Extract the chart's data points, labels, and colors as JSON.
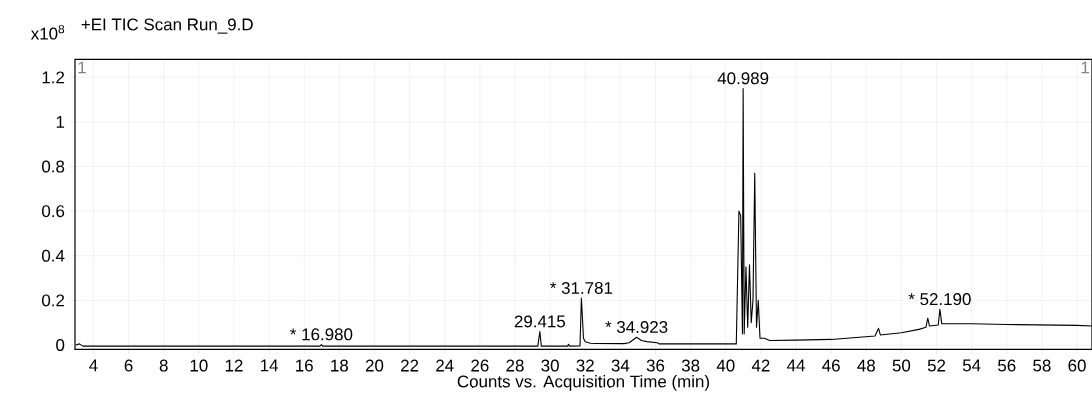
{
  "chart_data": {
    "type": "line",
    "title": "+EI TIC Scan Run_9.D",
    "xlabel": "Counts vs. Acquisition Time (min)",
    "ylabel": "x10$^{8}$",
    "x": [
      3.0,
      3.2,
      3.4,
      16.9,
      16.98,
      17.05,
      29.3,
      29.415,
      29.5,
      31.0,
      31.05,
      31.1,
      31.7,
      31.781,
      31.9,
      32.0,
      32.3,
      32.6,
      34.2,
      34.5,
      34.923,
      35.2,
      35.5,
      36.1,
      36.2,
      40.6,
      40.75,
      40.85,
      40.95,
      40.989,
      41.05,
      41.15,
      41.25,
      41.35,
      41.45,
      41.55,
      41.65,
      41.75,
      41.85,
      41.95,
      42.2,
      42.5,
      44,
      46,
      48.5,
      48.7,
      48.8,
      50,
      51,
      51.4,
      51.5,
      51.6,
      52.1,
      52.19,
      52.3,
      54,
      56,
      60,
      60.85
    ],
    "values": [
      0.0,
      0.005,
      -0.005,
      -0.005,
      0.002,
      -0.005,
      -0.005,
      0.06,
      -0.005,
      -0.005,
      0.003,
      -0.005,
      -0.004,
      0.21,
      0.03,
      0.015,
      0.008,
      0.007,
      0.006,
      0.01,
      0.035,
      0.02,
      0.015,
      0.01,
      0.005,
      0.005,
      0.6,
      0.58,
      0.05,
      1.15,
      0.05,
      0.35,
      0.08,
      0.36,
      0.1,
      0.2,
      0.77,
      0.08,
      0.2,
      0.03,
      0.03,
      0.02,
      0.022,
      0.025,
      0.04,
      0.075,
      0.045,
      0.055,
      0.07,
      0.08,
      0.12,
      0.085,
      0.09,
      0.16,
      0.095,
      0.095,
      0.092,
      0.088,
      0.085
    ],
    "color": "#000000",
    "marker": "none",
    "line_style": "solid",
    "grid": true,
    "xlim": [
      2.95,
      60.85
    ],
    "ylim": [
      -0.02,
      1.28
    ],
    "xticks": [
      4,
      6,
      8,
      10,
      12,
      14,
      16,
      18,
      20,
      22,
      24,
      26,
      28,
      30,
      32,
      34,
      36,
      38,
      40,
      42,
      44,
      46,
      48,
      50,
      52,
      54,
      56,
      58,
      60
    ],
    "yticks": [
      0,
      0.2,
      0.4,
      0.6,
      0.8,
      1,
      1.2
    ],
    "annotations": [
      {
        "text": "* 16.980",
        "x": 16.98,
        "y": 0.002
      },
      {
        "text": "29.415",
        "x": 29.415,
        "y": 0.06
      },
      {
        "text": "* 31.781",
        "x": 31.781,
        "y": 0.21
      },
      {
        "text": "* 34.923",
        "x": 34.923,
        "y": 0.035
      },
      {
        "text": "40.989",
        "x": 40.989,
        "y": 1.15
      },
      {
        "text": "* 52.190",
        "x": 52.19,
        "y": 0.16
      },
      "1",
      "1"
    ]
  }
}
